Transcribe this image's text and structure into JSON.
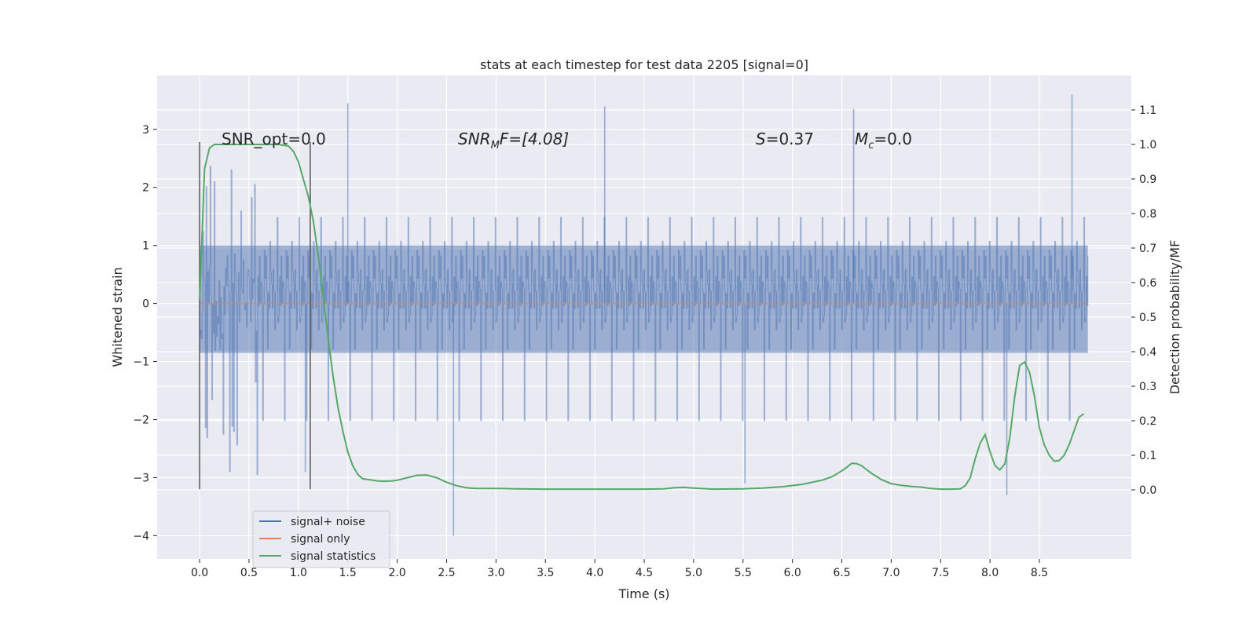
{
  "chart_data": {
    "type": "line",
    "title": "stats at each timestep for test data 2205 [signal=0]",
    "xlabel": "Time (s)",
    "ylabel_left": "Whitened strain",
    "ylabel_right": "Detection probability/MF",
    "xlim": [
      -0.43,
      9.43
    ],
    "ylim_left": [
      -4.4,
      3.93
    ],
    "ylim_right": [
      -0.2,
      1.2
    ],
    "x_ticks": [
      "0.0",
      "0.5",
      "1.0",
      "1.5",
      "2.0",
      "2.5",
      "3.0",
      "3.5",
      "4.0",
      "4.5",
      "5.0",
      "5.5",
      "6.0",
      "6.5",
      "7.0",
      "7.5",
      "8.0",
      "8.5"
    ],
    "y_ticks_left": [
      "3",
      "2",
      "1",
      "0",
      "−1",
      "−2",
      "−3",
      "−4"
    ],
    "y_ticks_right": [
      "1.1",
      "1.0",
      "0.9",
      "0.8",
      "0.7",
      "0.6",
      "0.5",
      "0.4",
      "0.3",
      "0.2",
      "0.1",
      "0.0"
    ],
    "grid": true,
    "legend_position": "lower-left",
    "annotations": {
      "snr_opt": "SNR_opt=0.0",
      "snr_mf_sym": "SNR",
      "snr_mf_sub": "M",
      "snr_mf_rest": "F=[4.08]",
      "s_sym": "S",
      "s_rest": "=0.37",
      "mc_sym": "M",
      "mc_sub": "c",
      "mc_rest": "=0.0"
    },
    "vertical_markers": [
      0.0,
      1.12
    ],
    "vertical_marker_range": [
      -3.2,
      2.78
    ],
    "series": [
      {
        "name": "signal+ noise",
        "color": "#4c72b0",
        "axis": "left",
        "x_range": [
          0.0,
          8.99
        ],
        "band_typical": [
          -1.6,
          1.7
        ],
        "dense_core": [
          -0.85,
          1.0
        ],
        "notable_extremes": [
          {
            "x": 1.5,
            "y": 3.45
          },
          {
            "x": 2.57,
            "y": -4.0
          },
          {
            "x": 4.1,
            "y": 3.4
          },
          {
            "x": 6.62,
            "y": 3.35
          },
          {
            "x": 8.83,
            "y": 3.6
          },
          {
            "x": 8.17,
            "y": -3.3
          },
          {
            "x": 1.07,
            "y": -2.9
          },
          {
            "x": 5.52,
            "y": -3.1
          }
        ]
      },
      {
        "name": "signal only",
        "color": "#dd8452",
        "axis": "left",
        "x": [
          0.0,
          8.99
        ],
        "y": [
          0.0,
          0.0
        ]
      },
      {
        "name": "signal statistics",
        "color": "#55a868",
        "axis": "right",
        "x": [
          0.0,
          0.05,
          0.1,
          0.15,
          0.2,
          0.3,
          0.4,
          0.5,
          0.6,
          0.7,
          0.8,
          0.9,
          0.95,
          1.0,
          1.05,
          1.1,
          1.15,
          1.2,
          1.25,
          1.3,
          1.35,
          1.4,
          1.45,
          1.5,
          1.55,
          1.6,
          1.65,
          1.7,
          1.75,
          1.8,
          1.85,
          1.9,
          1.95,
          2.0,
          2.1,
          2.2,
          2.3,
          2.4,
          2.5,
          2.6,
          2.7,
          2.8,
          3.0,
          3.2,
          3.5,
          4.0,
          4.5,
          4.7,
          4.8,
          4.9,
          5.0,
          5.2,
          5.5,
          5.7,
          5.9,
          6.1,
          6.3,
          6.4,
          6.5,
          6.55,
          6.6,
          6.65,
          6.7,
          6.8,
          6.9,
          7.0,
          7.1,
          7.2,
          7.3,
          7.4,
          7.5,
          7.6,
          7.7,
          7.75,
          7.8,
          7.85,
          7.9,
          7.95,
          8.0,
          8.05,
          8.1,
          8.15,
          8.2,
          8.25,
          8.3,
          8.35,
          8.4,
          8.45,
          8.5,
          8.55,
          8.6,
          8.65,
          8.7,
          8.75,
          8.8,
          8.85,
          8.9,
          8.95
        ],
        "y": [
          0.55,
          0.93,
          0.99,
          1.0,
          1.0,
          1.0,
          1.0,
          1.0,
          1.0,
          1.0,
          1.0,
          0.995,
          0.98,
          0.95,
          0.9,
          0.85,
          0.78,
          0.68,
          0.56,
          0.44,
          0.33,
          0.24,
          0.17,
          0.11,
          0.07,
          0.045,
          0.032,
          0.03,
          0.028,
          0.026,
          0.025,
          0.025,
          0.026,
          0.028,
          0.035,
          0.042,
          0.043,
          0.035,
          0.022,
          0.012,
          0.006,
          0.004,
          0.004,
          0.003,
          0.002,
          0.002,
          0.002,
          0.003,
          0.006,
          0.007,
          0.005,
          0.002,
          0.003,
          0.005,
          0.009,
          0.016,
          0.028,
          0.038,
          0.055,
          0.065,
          0.077,
          0.076,
          0.07,
          0.048,
          0.03,
          0.018,
          0.013,
          0.01,
          0.008,
          0.004,
          0.002,
          0.002,
          0.003,
          0.012,
          0.035,
          0.09,
          0.135,
          0.16,
          0.11,
          0.07,
          0.058,
          0.075,
          0.15,
          0.27,
          0.36,
          0.37,
          0.34,
          0.27,
          0.18,
          0.13,
          0.1,
          0.083,
          0.085,
          0.1,
          0.13,
          0.17,
          0.21,
          0.22
        ]
      }
    ]
  }
}
